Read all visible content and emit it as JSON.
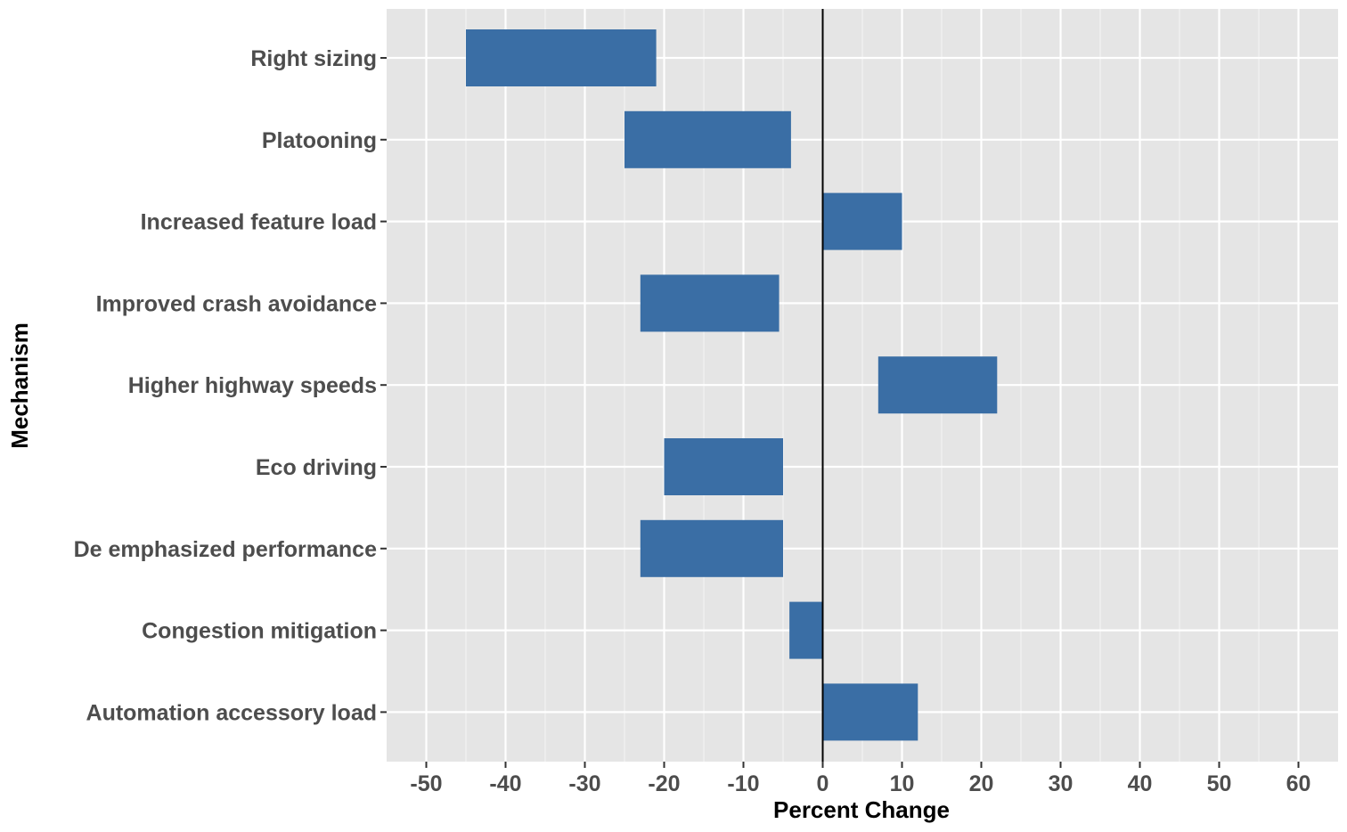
{
  "chart_data": {
    "type": "bar",
    "orientation": "horizontal-floating",
    "xlabel": "Percent Change",
    "ylabel": "Mechanism",
    "xlim": [
      -55,
      65
    ],
    "xticks": [
      -50,
      -40,
      -30,
      -20,
      -10,
      0,
      10,
      20,
      30,
      40,
      50,
      60
    ],
    "grid": true,
    "legend": "none",
    "bar_color": "#3a6ea5",
    "panel_color": "#e5e5e5",
    "reference_line": 0,
    "categories": [
      "Right sizing",
      "Platooning",
      "Increased feature load",
      "Improved crash avoidance",
      "Higher highway speeds",
      "Eco driving",
      "De emphasized performance",
      "Congestion mitigation",
      "Automation accessory load"
    ],
    "ranges": [
      [
        -45,
        -21
      ],
      [
        -25,
        -4
      ],
      [
        0,
        10
      ],
      [
        -23,
        -5.5
      ],
      [
        7,
        22
      ],
      [
        -20,
        -5
      ],
      [
        -23,
        -5
      ],
      [
        -4.2,
        0
      ],
      [
        0,
        12
      ]
    ]
  }
}
